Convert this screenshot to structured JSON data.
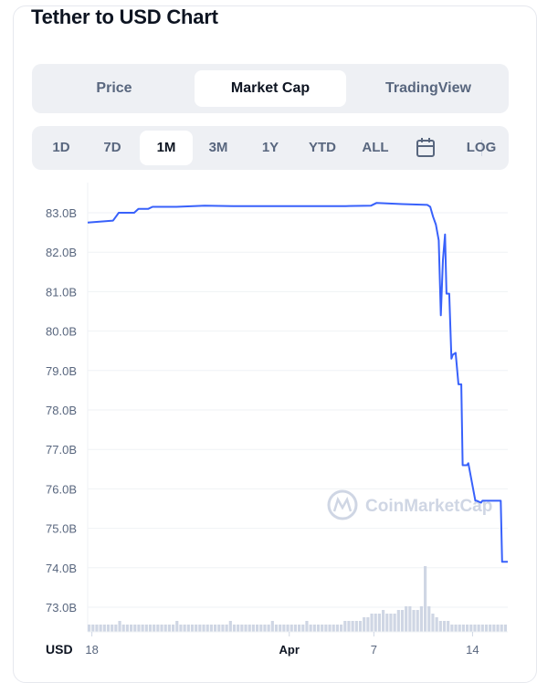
{
  "title": "Tether to USD Chart",
  "view_tabs": [
    {
      "label": "Price",
      "active": false
    },
    {
      "label": "Market Cap",
      "active": true
    },
    {
      "label": "TradingView",
      "active": false
    }
  ],
  "ranges": [
    {
      "label": "1D",
      "active": false
    },
    {
      "label": "7D",
      "active": false
    },
    {
      "label": "1M",
      "active": true
    },
    {
      "label": "3M",
      "active": false
    },
    {
      "label": "1Y",
      "active": false
    },
    {
      "label": "YTD",
      "active": false
    },
    {
      "label": "ALL",
      "active": false
    }
  ],
  "calendar_icon": "calendar-icon",
  "log_label": "LOG",
  "watermark": "CoinMarketCap",
  "colors": {
    "line": "#3861fb",
    "grid": "#eff2f5",
    "volume": "#cfd6e4",
    "accent_text": "#58667e"
  },
  "chart_data": {
    "type": "line",
    "title": "Tether to USD Chart",
    "currency_label": "USD",
    "y_ticks": [
      "83.0B",
      "82.0B",
      "81.0B",
      "80.0B",
      "79.0B",
      "78.0B",
      "77.0B",
      "76.0B",
      "75.0B",
      "74.0B",
      "73.0B"
    ],
    "y_tick_values": [
      83.0,
      82.0,
      81.0,
      80.0,
      79.0,
      78.0,
      77.0,
      76.0,
      75.0,
      74.0,
      73.0
    ],
    "x_ticks": [
      {
        "label": "18",
        "day": 0
      },
      {
        "label": "Apr",
        "day": 14
      },
      {
        "label": "7",
        "day": 20
      },
      {
        "label": "14",
        "day": 27
      }
    ],
    "ylim": [
      72.6,
      83.4
    ],
    "xlim": [
      -0.3,
      29.5
    ],
    "grid": true,
    "series": [
      {
        "x": [
          -0.3,
          1.5,
          1.9,
          3.0,
          3.3,
          4.0,
          4.3,
          6,
          8,
          10,
          12,
          14,
          16,
          18,
          19.8,
          20.2,
          22,
          23.8,
          24.0,
          24.2,
          24.4,
          24.6,
          24.75,
          24.9,
          25.05,
          25.15,
          25.35,
          25.5,
          25.6,
          25.8,
          26.0,
          26.2,
          26.3,
          26.6,
          26.7,
          27.2,
          27.3,
          27.6,
          27.7,
          29.0,
          29.1,
          29.5
        ],
        "y": [
          82.75,
          82.8,
          83.0,
          83.0,
          83.1,
          83.1,
          83.15,
          83.15,
          83.18,
          83.17,
          83.17,
          83.17,
          83.17,
          83.17,
          83.18,
          83.25,
          83.22,
          83.2,
          83.15,
          82.9,
          82.7,
          82.3,
          80.4,
          81.8,
          82.45,
          80.95,
          80.95,
          79.3,
          79.4,
          79.45,
          78.65,
          78.65,
          76.6,
          76.6,
          76.65,
          75.7,
          75.7,
          75.65,
          75.7,
          75.7,
          74.15,
          74.15
        ]
      }
    ],
    "volume": [
      2,
      2,
      2,
      2,
      2,
      2,
      2,
      2,
      3,
      2,
      2,
      2,
      2,
      2,
      2,
      2,
      2,
      2,
      2,
      2,
      2,
      2,
      2,
      3,
      2,
      2,
      2,
      2,
      2,
      2,
      2,
      2,
      2,
      2,
      2,
      2,
      2,
      3,
      2,
      2,
      2,
      2,
      2,
      2,
      2,
      2,
      2,
      2,
      3,
      2,
      2,
      2,
      2,
      2,
      2,
      2,
      2,
      3,
      2,
      2,
      2,
      2,
      2,
      2,
      2,
      2,
      2,
      3,
      3,
      3,
      3,
      3,
      4,
      4,
      5,
      5,
      5,
      6,
      5,
      5,
      5,
      6,
      6,
      7,
      7,
      6,
      6,
      7,
      18,
      7,
      5,
      4,
      3,
      3,
      3,
      2,
      2,
      2,
      2,
      2,
      2,
      2,
      2,
      2,
      2,
      2,
      2,
      2,
      2,
      2
    ]
  }
}
